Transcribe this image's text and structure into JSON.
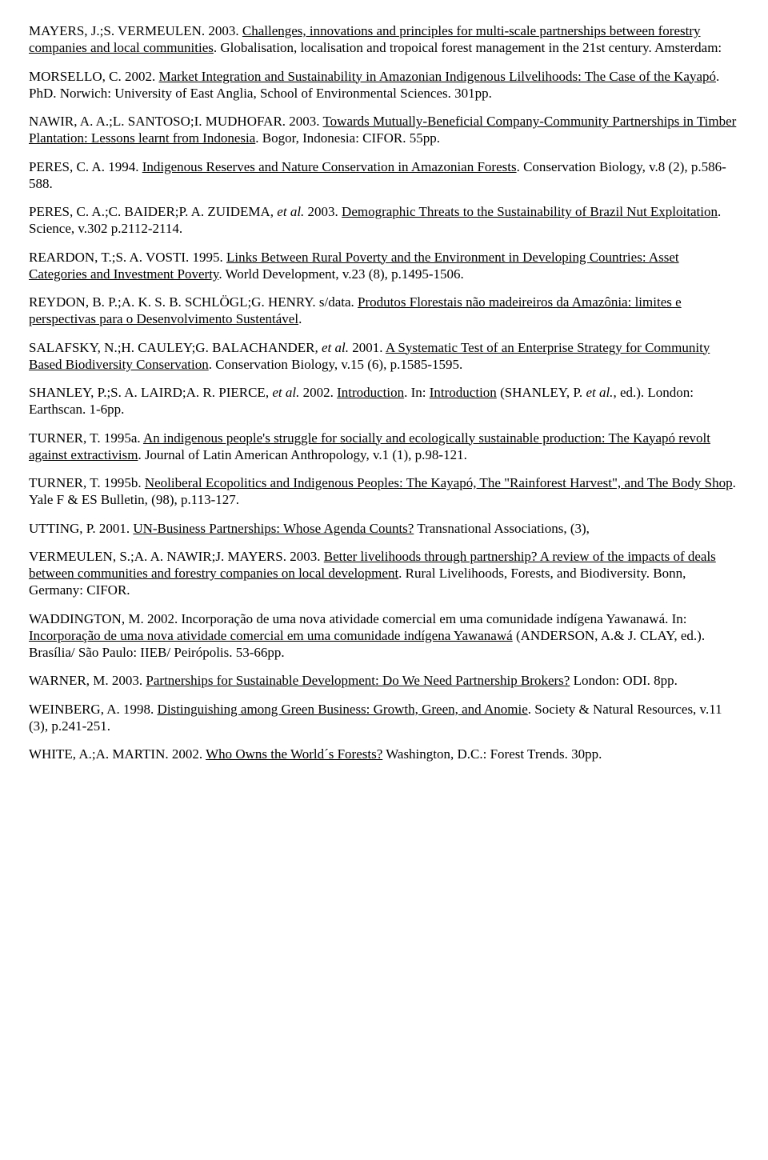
{
  "refs": [
    [
      {
        "t": "MAYERS, J.;S. VERMEULEN. 2003. "
      },
      {
        "t": "Challenges, innovations and principles for multi-scale partnerships between forestry companies and local communities",
        "u": true
      },
      {
        "t": ". Globalisation, localisation and tropoical forest management in the 21st century. Amsterdam:"
      }
    ],
    [
      {
        "t": "MORSELLO, C. 2002. "
      },
      {
        "t": "Market Integration and Sustainability in Amazonian Indigenous Lilvelihoods: The Case of the Kayapó",
        "u": true
      },
      {
        "t": ". PhD. Norwich: University of East Anglia, School of Environmental Sciences. 301pp."
      }
    ],
    [
      {
        "t": "NAWIR, A. A.;L. SANTOSO;I. MUDHOFAR. 2003. "
      },
      {
        "t": "Towards Mutually-Beneficial Company-Community Partnerships in Timber Plantation: Lessons learnt from Indonesia",
        "u": true
      },
      {
        "t": ". Bogor, Indonesia: CIFOR. 55pp."
      }
    ],
    [
      {
        "t": "PERES, C. A. 1994. "
      },
      {
        "t": "Indigenous Reserves and Nature Conservation in Amazonian Forests",
        "u": true
      },
      {
        "t": ". Conservation Biology, v.8 (2), p.586-588."
      }
    ],
    [
      {
        "t": "PERES, C. A.;C. BAIDER;P. A. ZUIDEMA"
      },
      {
        "t": ", et al.",
        "i": true
      },
      {
        "t": " 2003. "
      },
      {
        "t": "Demographic Threats to the Sustainability of Brazil Nut Exploitation",
        "u": true
      },
      {
        "t": ". Science, v.302 p.2112-2114."
      }
    ],
    [
      {
        "t": "REARDON, T.;S. A. VOSTI. 1995. "
      },
      {
        "t": "Links Between Rural Poverty and the Environment in Developing Countries: Asset Categories and Investment Poverty",
        "u": true
      },
      {
        "t": ". World Development, v.23 (8), p.1495-1506."
      }
    ],
    [
      {
        "t": "REYDON, B. P.;A. K. S. B. SCHLÖGL;G. HENRY. s/data. "
      },
      {
        "t": "Produtos Florestais não madeireiros da Amazônia: limites e perspectivas para o Desenvolvimento Sustentável",
        "u": true
      },
      {
        "t": "."
      }
    ],
    [
      {
        "t": "SALAFSKY, N.;H. CAULEY;G. BALACHANDER"
      },
      {
        "t": ", et al.",
        "i": true
      },
      {
        "t": " 2001. "
      },
      {
        "t": "A Systematic Test of an Enterprise Strategy for Community Based Biodiversity Conservation",
        "u": true
      },
      {
        "t": ". Conservation Biology, v.15 (6), p.1585-1595."
      }
    ],
    [
      {
        "t": "SHANLEY, P.;S. A. LAIRD;A. R. PIERCE"
      },
      {
        "t": ", et al.",
        "i": true
      },
      {
        "t": " 2002. "
      },
      {
        "t": "Introduction",
        "u": true
      },
      {
        "t": ". In: "
      },
      {
        "t": "Introduction",
        "u": true
      },
      {
        "t": " (SHANLEY, P. "
      },
      {
        "t": "et al.",
        "i": true
      },
      {
        "t": ", ed.). London: Earthscan. 1-6pp."
      }
    ],
    [
      {
        "t": "TURNER, T. 1995a. "
      },
      {
        "t": "An indigenous people's struggle for socially and ecologically sustainable production: The Kayapó revolt against extractivism",
        "u": true
      },
      {
        "t": ". Journal of Latin American Anthropology, v.1 (1), p.98-121."
      }
    ],
    [
      {
        "t": "TURNER, T. 1995b. "
      },
      {
        "t": "Neoliberal Ecopolitics and Indigenous Peoples: The Kayapó, The \"Rainforest Harvest\", and The Body Shop",
        "u": true
      },
      {
        "t": ". Yale F & ES Bulletin, (98), p.113-127."
      }
    ],
    [
      {
        "t": "UTTING, P. 2001. "
      },
      {
        "t": "UN-Business Partnerships: Whose Agenda Counts?",
        "u": true
      },
      {
        "t": " Transnational Associations, (3),"
      }
    ],
    [
      {
        "t": "VERMEULEN, S.;A. A. NAWIR;J. MAYERS. 2003. "
      },
      {
        "t": "Better livelihoods through partnership? A review of the impacts of deals between communities and forestry companies on local development",
        "u": true
      },
      {
        "t": ". Rural Livelihoods, Forests, and Biodiversity. Bonn, Germany: CIFOR."
      }
    ],
    [
      {
        "t": "WADDINGTON, M. 2002. Incorporação de uma nova atividade comercial em uma comunidade indígena Yawanawá. In: "
      },
      {
        "t": "Incorporação de uma nova atividade comercial em uma comunidade indígena Yawanawá",
        "u": true
      },
      {
        "t": " (ANDERSON, A.& J. CLAY, ed.). Brasília/ São Paulo: IIEB/ Peirópolis. 53-66pp."
      }
    ],
    [
      {
        "t": "WARNER, M. 2003. "
      },
      {
        "t": "Partnerships for Sustainable Development: Do We Need Partnership Brokers?",
        "u": true
      },
      {
        "t": " London: ODI. 8pp."
      }
    ],
    [
      {
        "t": "WEINBERG, A. 1998. "
      },
      {
        "t": "Distinguishing among Green Business: Growth, Green, and Anomie",
        "u": true
      },
      {
        "t": ". Society & Natural Resources, v.11 (3), p.241-251."
      }
    ],
    [
      {
        "t": "WHITE, A.;A. MARTIN. 2002. "
      },
      {
        "t": "Who Owns the World´s Forests?",
        "u": true
      },
      {
        "t": " Washington, D.C.: Forest Trends. 30pp."
      }
    ]
  ]
}
